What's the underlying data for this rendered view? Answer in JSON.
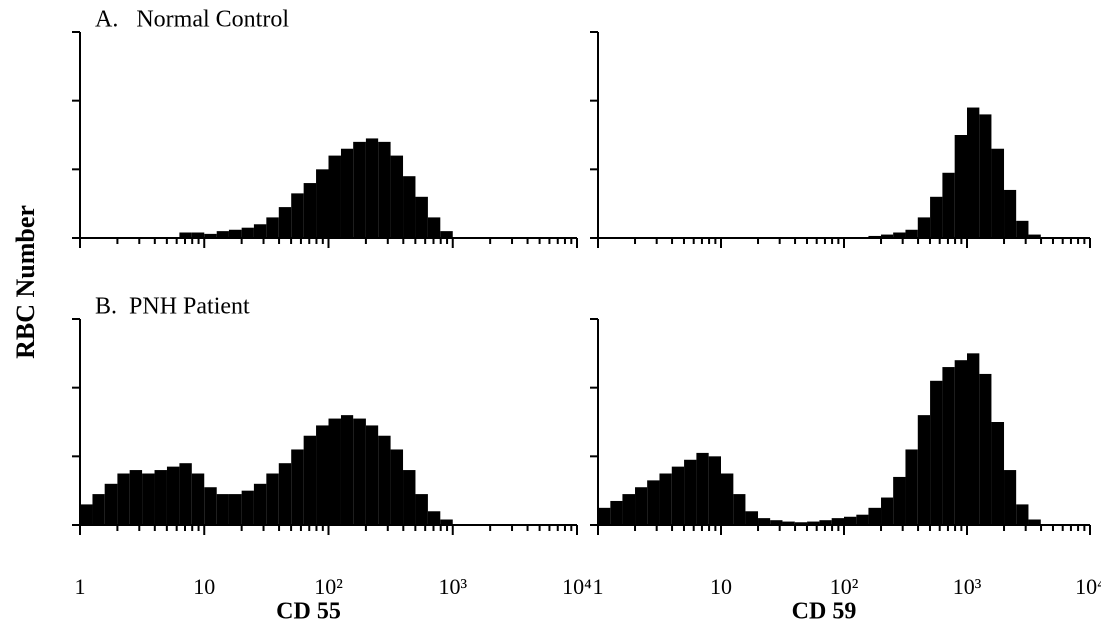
{
  "chart_data": [
    {
      "type": "histogram",
      "title": "A.   Normal Control",
      "ylabel": "RBC Number",
      "xscale": "log",
      "color": "#000000",
      "xticklabels": false,
      "xlim": [
        1,
        10000
      ],
      "xticks": [
        1,
        10,
        100,
        1000,
        10000
      ],
      "xminorticks": [
        2,
        3,
        4,
        5,
        6,
        7,
        8,
        9,
        20,
        30,
        40,
        50,
        60,
        70,
        80,
        90,
        200,
        300,
        400,
        500,
        600,
        700,
        800,
        900,
        2000,
        3000,
        4000,
        5000,
        6000,
        7000,
        8000,
        9000
      ],
      "ylim": [
        0,
        3
      ],
      "yticks": [
        0,
        1,
        2,
        3
      ],
      "bins": [
        6.31,
        7.94,
        10,
        12.6,
        15.8,
        20,
        25.1,
        31.6,
        39.8,
        50.1,
        63.1,
        79.4,
        100,
        126,
        158,
        200,
        251,
        316,
        398,
        501,
        631,
        794,
        1000
      ],
      "values": [
        0.08,
        0.08,
        0.06,
        0.1,
        0.12,
        0.15,
        0.2,
        0.3,
        0.45,
        0.65,
        0.8,
        1.0,
        1.2,
        1.3,
        1.4,
        1.45,
        1.4,
        1.2,
        0.9,
        0.6,
        0.3,
        0.1
      ]
    },
    {
      "type": "histogram",
      "xscale": "log",
      "color": "#000000",
      "xticklabels": false,
      "xlim": [
        1,
        10000
      ],
      "xticks": [
        1,
        10,
        100,
        1000,
        10000
      ],
      "xminorticks": [
        2,
        3,
        4,
        5,
        6,
        7,
        8,
        9,
        20,
        30,
        40,
        50,
        60,
        70,
        80,
        90,
        200,
        300,
        400,
        500,
        600,
        700,
        800,
        900,
        2000,
        3000,
        4000,
        5000,
        6000,
        7000,
        8000,
        9000
      ],
      "ylim": [
        0,
        3
      ],
      "yticks": [
        0,
        1,
        2,
        3
      ],
      "bins": [
        158,
        200,
        251,
        316,
        398,
        501,
        631,
        794,
        1000,
        1260,
        1580,
        2000,
        2510,
        3160,
        3980
      ],
      "values": [
        0.03,
        0.05,
        0.08,
        0.12,
        0.3,
        0.6,
        0.95,
        1.5,
        1.9,
        1.8,
        1.3,
        0.7,
        0.25,
        0.05
      ]
    },
    {
      "type": "histogram",
      "title": "B.  PNH Patient",
      "xlabel": "CD 55",
      "xscale": "log",
      "color": "#000000",
      "xticklabels": true,
      "xlim": [
        1,
        10000
      ],
      "xticks": [
        1,
        10,
        {
          "value": 100,
          "label": "10²"
        },
        {
          "value": 1000,
          "label": "10³"
        },
        {
          "value": 10000,
          "label": "10⁴"
        }
      ],
      "xminorticks": [
        2,
        3,
        4,
        5,
        6,
        7,
        8,
        9,
        20,
        30,
        40,
        50,
        60,
        70,
        80,
        90,
        200,
        300,
        400,
        500,
        600,
        700,
        800,
        900,
        2000,
        3000,
        4000,
        5000,
        6000,
        7000,
        8000,
        9000
      ],
      "ylim": [
        0,
        3
      ],
      "yticks": [
        0,
        1,
        2,
        3
      ],
      "bins": [
        1,
        1.26,
        1.58,
        2,
        2.51,
        3.16,
        3.98,
        5.01,
        6.31,
        7.94,
        10,
        12.6,
        15.8,
        20,
        25.1,
        31.6,
        39.8,
        50.1,
        63.1,
        79.4,
        100,
        126,
        158,
        200,
        251,
        316,
        398,
        501,
        631,
        794,
        1000
      ],
      "values": [
        0.3,
        0.45,
        0.6,
        0.75,
        0.8,
        0.75,
        0.8,
        0.85,
        0.9,
        0.75,
        0.55,
        0.45,
        0.45,
        0.5,
        0.6,
        0.75,
        0.9,
        1.1,
        1.3,
        1.45,
        1.55,
        1.6,
        1.55,
        1.45,
        1.3,
        1.1,
        0.8,
        0.45,
        0.2,
        0.08
      ]
    },
    {
      "type": "histogram",
      "xlabel": "CD 59",
      "xscale": "log",
      "color": "#000000",
      "xticklabels": true,
      "xlim": [
        1,
        10000
      ],
      "xticks": [
        1,
        10,
        {
          "value": 100,
          "label": "10²"
        },
        {
          "value": 1000,
          "label": "10³"
        },
        {
          "value": 10000,
          "label": "10⁴"
        }
      ],
      "xminorticks": [
        2,
        3,
        4,
        5,
        6,
        7,
        8,
        9,
        20,
        30,
        40,
        50,
        60,
        70,
        80,
        90,
        200,
        300,
        400,
        500,
        600,
        700,
        800,
        900,
        2000,
        3000,
        4000,
        5000,
        6000,
        7000,
        8000,
        9000
      ],
      "ylim": [
        0,
        3
      ],
      "yticks": [
        0,
        1,
        2,
        3
      ],
      "bins": [
        1,
        1.26,
        1.58,
        2,
        2.51,
        3.16,
        3.98,
        5.01,
        6.31,
        7.94,
        10,
        12.6,
        15.8,
        20,
        25.1,
        31.6,
        39.8,
        50.1,
        63.1,
        79.4,
        100,
        126,
        158,
        200,
        251,
        316,
        398,
        501,
        631,
        794,
        1000,
        1260,
        1580,
        2000,
        2510,
        3160,
        3980
      ],
      "values": [
        0.25,
        0.35,
        0.45,
        0.55,
        0.65,
        0.75,
        0.85,
        0.95,
        1.05,
        1.0,
        0.75,
        0.45,
        0.2,
        0.1,
        0.07,
        0.05,
        0.04,
        0.05,
        0.07,
        0.1,
        0.12,
        0.15,
        0.25,
        0.4,
        0.7,
        1.1,
        1.6,
        2.1,
        2.3,
        2.4,
        2.5,
        2.2,
        1.5,
        0.8,
        0.3,
        0.08
      ]
    }
  ]
}
